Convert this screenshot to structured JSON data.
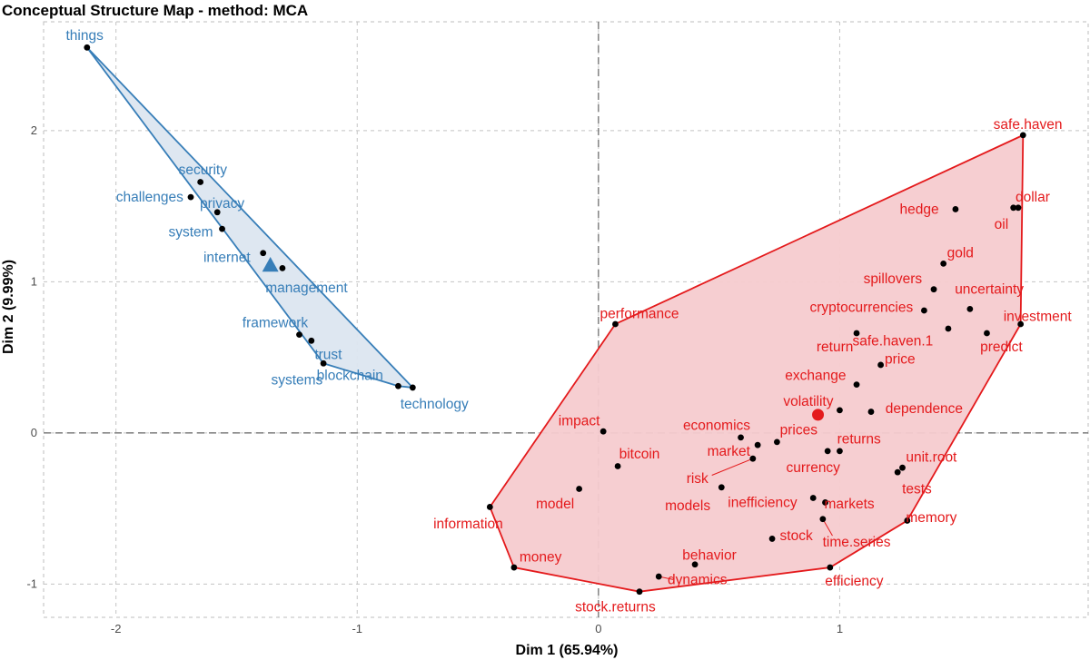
{
  "chart_data": {
    "type": "scatter",
    "title": "Conceptual Structure Map - method: MCA",
    "xlabel": "Dim 1 (65.94%)",
    "ylabel": "Dim 2 (9.99%)",
    "xlim": [
      -2.3,
      2.03
    ],
    "ylim": [
      -1.22,
      2.72
    ],
    "xticks": [
      -2,
      -1,
      0,
      1
    ],
    "yticks": [
      -1,
      0,
      1,
      2
    ],
    "xtick_labels": [
      "-2",
      "-1",
      "0",
      "1"
    ],
    "ytick_labels": [
      "-1",
      "0",
      "1",
      "2"
    ],
    "grid": true,
    "clusters": [
      {
        "name": "cluster-1",
        "color": "#377eb8",
        "fill": "#dce6f0",
        "centroid": {
          "x": -1.36,
          "y": 1.11,
          "marker": "triangle"
        },
        "hull": [
          "things",
          "technology",
          "blockchain",
          "systems"
        ],
        "points": [
          {
            "label": "things",
            "x": -2.12,
            "y": 2.55,
            "lx": -2.13,
            "ly": 2.63
          },
          {
            "label": "security",
            "x": -1.65,
            "y": 1.66,
            "lx": -1.64,
            "ly": 1.74
          },
          {
            "label": "challenges",
            "x": -1.69,
            "y": 1.56,
            "lx": -1.86,
            "ly": 1.56
          },
          {
            "label": "privacy",
            "x": -1.58,
            "y": 1.46,
            "lx": -1.56,
            "ly": 1.52
          },
          {
            "label": "system",
            "x": -1.56,
            "y": 1.35,
            "lx": -1.69,
            "ly": 1.33
          },
          {
            "label": "internet",
            "x": -1.39,
            "y": 1.19,
            "lx": -1.54,
            "ly": 1.16
          },
          {
            "label": "management",
            "x": -1.31,
            "y": 1.09,
            "lx": -1.21,
            "ly": 0.96
          },
          {
            "label": "framework",
            "x": -1.24,
            "y": 0.65,
            "lx": -1.34,
            "ly": 0.73
          },
          {
            "label": "trust",
            "x": -1.19,
            "y": 0.61,
            "lx": -1.12,
            "ly": 0.52
          },
          {
            "label": "systems",
            "x": -1.14,
            "y": 0.46,
            "lx": -1.25,
            "ly": 0.35
          },
          {
            "label": "blockchain",
            "x": -0.83,
            "y": 0.31,
            "lx": -1.03,
            "ly": 0.38
          },
          {
            "label": "technology",
            "x": -0.77,
            "y": 0.3,
            "lx": -0.68,
            "ly": 0.19
          }
        ]
      },
      {
        "name": "cluster-2",
        "color": "#e41a1c",
        "fill": "#f6cbcf",
        "centroid": {
          "x": 0.91,
          "y": 0.12,
          "marker": "circle"
        },
        "hull": [
          "safe.haven",
          "investment",
          "memory",
          "efficiency",
          "stock.returns",
          "money",
          "information",
          "performance"
        ],
        "points": [
          {
            "label": "safe.haven",
            "x": 1.76,
            "y": 1.97,
            "lx": 1.78,
            "ly": 2.04
          },
          {
            "label": "dollar",
            "x": 1.74,
            "y": 1.49,
            "lx": 1.8,
            "ly": 1.56
          },
          {
            "label": "hedge",
            "x": 1.48,
            "y": 1.48,
            "lx": 1.33,
            "ly": 1.48
          },
          {
            "label": "oil",
            "x": 1.72,
            "y": 1.49,
            "lx": 1.67,
            "ly": 1.38
          },
          {
            "label": "gold",
            "x": 1.43,
            "y": 1.12,
            "lx": 1.5,
            "ly": 1.19
          },
          {
            "label": "spillovers",
            "x": 1.39,
            "y": 0.95,
            "lx": 1.22,
            "ly": 1.02
          },
          {
            "label": "uncertainty",
            "x": 1.54,
            "y": 0.82,
            "lx": 1.62,
            "ly": 0.95
          },
          {
            "label": "cryptocurrencies",
            "x": 1.35,
            "y": 0.81,
            "lx": 1.09,
            "ly": 0.83
          },
          {
            "label": "investment",
            "x": 1.75,
            "y": 0.72,
            "lx": 1.82,
            "ly": 0.77
          },
          {
            "label": "predict",
            "x": 1.61,
            "y": 0.66,
            "lx": 1.67,
            "ly": 0.57
          },
          {
            "label": "safe.haven.1",
            "x": 1.45,
            "y": 0.69,
            "lx": 1.22,
            "ly": 0.61
          },
          {
            "label": "return",
            "x": 1.07,
            "y": 0.66,
            "lx": 0.98,
            "ly": 0.57
          },
          {
            "label": "price",
            "x": 1.17,
            "y": 0.45,
            "lx": 1.25,
            "ly": 0.49
          },
          {
            "label": "exchange",
            "x": 1.07,
            "y": 0.32,
            "lx": 0.9,
            "ly": 0.38
          },
          {
            "label": "dependence",
            "x": 1.13,
            "y": 0.14,
            "lx": 1.35,
            "ly": 0.16
          },
          {
            "label": "volatility",
            "x": 1.0,
            "y": 0.15,
            "lx": 0.87,
            "ly": 0.21
          },
          {
            "label": "performance",
            "x": 0.07,
            "y": 0.72,
            "lx": 0.17,
            "ly": 0.79
          },
          {
            "label": "impact",
            "x": 0.02,
            "y": 0.01,
            "lx": -0.08,
            "ly": 0.08
          },
          {
            "label": "economics",
            "x": 0.59,
            "y": -0.03,
            "lx": 0.49,
            "ly": 0.05
          },
          {
            "label": "prices",
            "x": 0.74,
            "y": -0.06,
            "lx": 0.83,
            "ly": 0.02
          },
          {
            "label": "returns",
            "x": 1.0,
            "y": -0.12,
            "lx": 1.08,
            "ly": -0.04
          },
          {
            "label": "market",
            "x": 0.66,
            "y": -0.08,
            "lx": 0.54,
            "ly": -0.12
          },
          {
            "label": "bitcoin",
            "x": 0.08,
            "y": -0.22,
            "lx": 0.17,
            "ly": -0.14
          },
          {
            "label": "risk",
            "x": 0.64,
            "y": -0.17,
            "lx": 0.41,
            "ly": -0.3
          },
          {
            "label": "currency",
            "x": 0.95,
            "y": -0.12,
            "lx": 0.89,
            "ly": -0.23
          },
          {
            "label": "unit.root",
            "x": 1.26,
            "y": -0.23,
            "lx": 1.38,
            "ly": -0.16
          },
          {
            "label": "tests",
            "x": 1.24,
            "y": -0.26,
            "lx": 1.32,
            "ly": -0.37
          },
          {
            "label": "model",
            "x": -0.08,
            "y": -0.37,
            "lx": -0.18,
            "ly": -0.47
          },
          {
            "label": "models",
            "x": 0.51,
            "y": -0.36,
            "lx": 0.37,
            "ly": -0.48
          },
          {
            "label": "inefficiency",
            "x": 0.89,
            "y": -0.43,
            "lx": 0.68,
            "ly": -0.46
          },
          {
            "label": "markets",
            "x": 0.94,
            "y": -0.46,
            "lx": 1.04,
            "ly": -0.47
          },
          {
            "label": "information",
            "x": -0.45,
            "y": -0.49,
            "lx": -0.54,
            "ly": -0.6
          },
          {
            "label": "memory",
            "x": 1.28,
            "y": -0.58,
            "lx": 1.38,
            "ly": -0.56
          },
          {
            "label": "time.series",
            "x": 0.93,
            "y": -0.57,
            "lx": 1.07,
            "ly": -0.72
          },
          {
            "label": "stock",
            "x": 0.72,
            "y": -0.7,
            "lx": 0.82,
            "ly": -0.68
          },
          {
            "label": "behavior",
            "x": 0.4,
            "y": -0.87,
            "lx": 0.46,
            "ly": -0.81
          },
          {
            "label": "money",
            "x": -0.35,
            "y": -0.89,
            "lx": -0.24,
            "ly": -0.82
          },
          {
            "label": "dynamics",
            "x": 0.25,
            "y": -0.95,
            "lx": 0.41,
            "ly": -0.97
          },
          {
            "label": "efficiency",
            "x": 0.96,
            "y": -0.89,
            "lx": 1.06,
            "ly": -0.98
          },
          {
            "label": "stock.returns",
            "x": 0.17,
            "y": -1.05,
            "lx": 0.07,
            "ly": -1.15
          }
        ],
        "leaders": [
          {
            "from": "risk",
            "tx": 0.47,
            "ty": -0.28
          },
          {
            "from": "time.series",
            "tx": 0.97,
            "ty": -0.68
          },
          {
            "from": "dynamics",
            "tx": 0.31,
            "ty": -0.97
          }
        ]
      }
    ]
  }
}
